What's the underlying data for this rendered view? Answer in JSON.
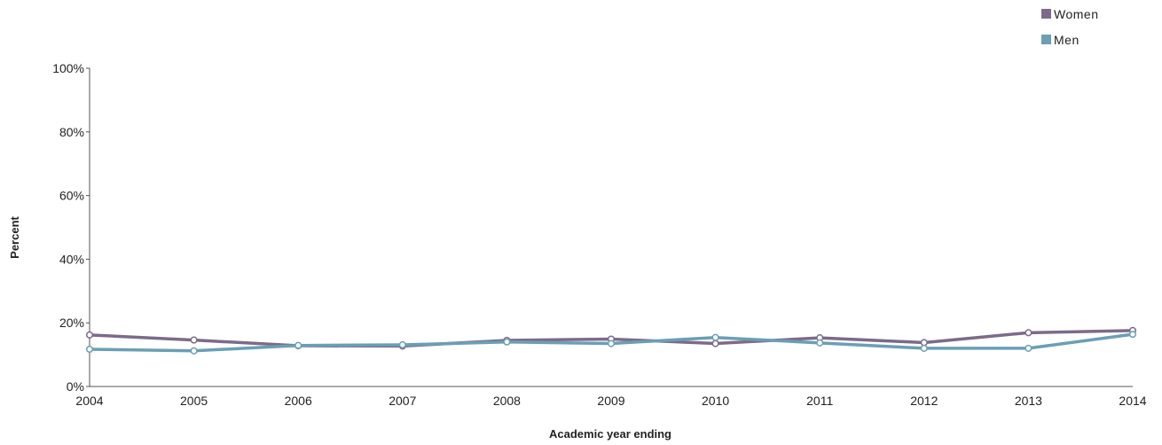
{
  "chart_data": {
    "type": "line",
    "title": "",
    "xlabel": "Academic year ending",
    "ylabel": "Percent",
    "x": [
      "2004",
      "2005",
      "2006",
      "2007",
      "2008",
      "2009",
      "2010",
      "2011",
      "2012",
      "2013",
      "2014"
    ],
    "ylim": [
      0,
      100
    ],
    "yticks": [
      "0%",
      "20%",
      "40%",
      "60%",
      "80%",
      "100%"
    ],
    "grid": false,
    "legend": "top-right",
    "series": [
      {
        "name": "Women",
        "color": "#7d6a8a",
        "values": [
          16.2,
          14.6,
          12.8,
          12.7,
          14.5,
          14.9,
          13.5,
          15.3,
          13.8,
          16.9,
          17.6
        ]
      },
      {
        "name": "Men",
        "color": "#6a9fb5",
        "values": [
          11.7,
          11.2,
          12.9,
          13.1,
          14.0,
          13.5,
          15.4,
          13.7,
          12.0,
          12.0,
          16.4
        ]
      }
    ]
  }
}
